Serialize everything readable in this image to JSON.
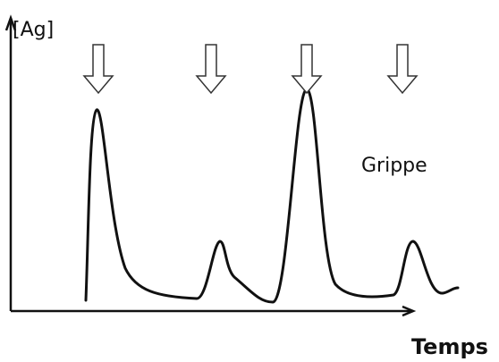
{
  "labels": {
    "y_axis": "[Ag]",
    "x_axis": "Temps",
    "annotation": "Grippe"
  }
}
